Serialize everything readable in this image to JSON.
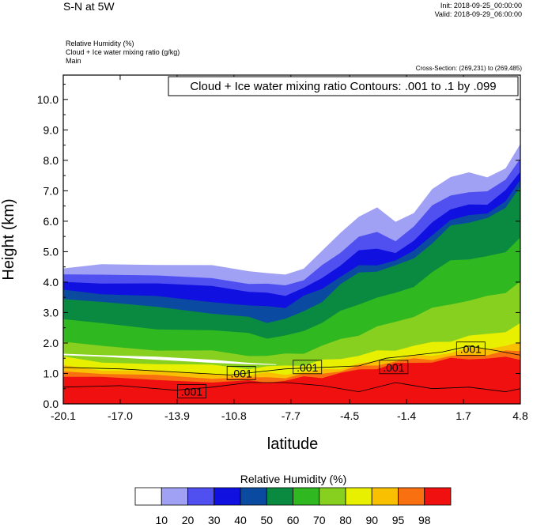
{
  "header": {
    "title": "S-N at 5W",
    "init": "Init: 2018-09-25_00:00:00",
    "valid": "Valid: 2018-09-29_06:00:00",
    "var1": "Relative Humidity   (%)",
    "var2": "Cloud + Ice water mixing ratio   (g/kg)",
    "var3": "Main",
    "cross_section": "Cross-Section: (269,231) to (269,485)"
  },
  "colors": {
    "levels": [
      "#ffffff",
      "#a0a0f5",
      "#5050f0",
      "#1010e0",
      "#0a4aa0",
      "#0a8a40",
      "#30b820",
      "#88d020",
      "#e8f000",
      "#f8c000",
      "#f87010",
      "#f01010"
    ]
  },
  "chart_data": {
    "type": "heatmap",
    "title": "Cloud + Ice water mixing ratio Contours: .001 to .1 by .099",
    "xlabel": "latitude",
    "ylabel": "Height (km)",
    "xlim": [
      -20.1,
      4.8
    ],
    "ylim": [
      0.0,
      10.8
    ],
    "x_ticks": [
      "-20.1",
      "-17.0",
      "-13.9",
      "-10.8",
      "-7.7",
      "-4.5",
      "-1.4",
      "1.7",
      "4.8"
    ],
    "y_ticks": [
      "0.0",
      "1.0",
      "2.0",
      "3.0",
      "4.0",
      "5.0",
      "6.0",
      "7.0",
      "8.0",
      "9.0",
      "10.0"
    ],
    "colorbar_title": "Relative Humidity  (%)",
    "colorbar_labels": [
      "10",
      "20",
      "30",
      "40",
      "50",
      "60",
      "70",
      "80",
      "90",
      "95",
      "98"
    ],
    "contour_labels": [
      {
        "text": ".001",
        "lat": -13.1,
        "height": 0.4
      },
      {
        "text": ".001",
        "lat": -10.4,
        "height": 1.0
      },
      {
        "text": ".001",
        "lat": -6.8,
        "height": 1.2
      },
      {
        "text": ".001",
        "lat": -2.1,
        "height": 1.2
      },
      {
        "text": ".001",
        "lat": 2.1,
        "height": 1.8
      }
    ],
    "rh_layers": [
      {
        "level": 1,
        "lat": [
          -20.1,
          -18,
          -15,
          -12,
          -10,
          -9,
          -8,
          -7,
          -6,
          -5,
          -4,
          -3,
          -2,
          -1,
          0,
          1,
          2,
          3,
          4,
          4.8
        ],
        "top": [
          4.4,
          4.6,
          4.6,
          4.5,
          4.4,
          4.3,
          4.2,
          4.5,
          5.0,
          5.6,
          6.2,
          6.4,
          6.0,
          6.3,
          7.0,
          7.5,
          7.6,
          7.4,
          7.8,
          8.5
        ]
      },
      {
        "level": 2,
        "lat": [
          -20.1,
          -18,
          -15,
          -12,
          -10,
          -9,
          -8,
          -7,
          -6,
          -5,
          -4,
          -3,
          -2,
          -1,
          0,
          1,
          2,
          3,
          4,
          4.8
        ],
        "top": [
          4.2,
          4.3,
          4.2,
          4.1,
          4.0,
          3.9,
          3.9,
          4.1,
          4.5,
          5.0,
          5.5,
          5.6,
          5.4,
          5.8,
          6.5,
          6.9,
          6.9,
          7.0,
          7.4,
          8.0
        ]
      },
      {
        "level": 3,
        "lat": [
          -20.1,
          -18,
          -15,
          -12,
          -10,
          -9,
          -8,
          -7,
          -6,
          -5,
          -4,
          -3,
          -2,
          -1,
          0,
          1,
          2,
          3,
          4,
          4.8
        ],
        "top": [
          4.0,
          4.0,
          3.9,
          3.9,
          3.7,
          3.6,
          3.6,
          3.8,
          4.1,
          4.6,
          5.0,
          5.1,
          5.0,
          5.3,
          6.0,
          6.4,
          6.5,
          6.6,
          7.0,
          7.6
        ]
      },
      {
        "level": 4,
        "lat": [
          -20.1,
          -18,
          -15,
          -12,
          -10,
          -9,
          -8,
          -7,
          -6,
          -5,
          -4,
          -3,
          -2,
          -1,
          0,
          1,
          2,
          3,
          4,
          4.8
        ],
        "top": [
          3.8,
          3.6,
          3.5,
          3.4,
          3.2,
          3.2,
          3.2,
          3.5,
          3.8,
          4.2,
          4.5,
          4.6,
          4.7,
          5.0,
          5.6,
          6.0,
          6.2,
          6.3,
          6.6,
          7.4
        ]
      },
      {
        "level": 5,
        "lat": [
          -20.1,
          -18,
          -15,
          -12,
          -10,
          -9,
          -8,
          -7,
          -6,
          -5,
          -4,
          -3,
          -2,
          -1,
          0,
          1,
          2,
          3,
          4,
          4.8
        ],
        "top": [
          3.5,
          3.3,
          3.2,
          3.0,
          2.8,
          2.7,
          2.8,
          3.0,
          3.4,
          3.9,
          4.3,
          4.4,
          4.5,
          4.8,
          5.3,
          5.8,
          6.0,
          6.1,
          6.4,
          7.2
        ]
      },
      {
        "level": 6,
        "lat": [
          -20.1,
          -18,
          -15,
          -12,
          -10,
          -9,
          -8,
          -7,
          -6,
          -5,
          -4,
          -3,
          -2,
          -1,
          0,
          1,
          2,
          3,
          4,
          4.8
        ],
        "top": [
          2.8,
          2.6,
          2.5,
          2.4,
          2.3,
          2.2,
          2.2,
          2.4,
          2.7,
          3.0,
          3.3,
          3.5,
          3.6,
          3.9,
          4.3,
          4.7,
          4.8,
          4.8,
          5.0,
          5.5
        ]
      },
      {
        "level": 7,
        "lat": [
          -20.1,
          -18,
          -15,
          -12,
          -10,
          -9,
          -8,
          -7,
          -6,
          -5,
          -4,
          -3,
          -2,
          -1,
          0,
          1,
          2,
          3,
          4,
          4.8
        ],
        "top": [
          2.0,
          1.9,
          1.8,
          1.7,
          1.6,
          1.6,
          1.6,
          1.7,
          1.9,
          2.1,
          2.3,
          2.5,
          2.7,
          2.9,
          3.1,
          3.3,
          3.4,
          3.5,
          3.7,
          4.0
        ]
      },
      {
        "level": 8,
        "lat": [
          -20.1,
          -18,
          -15,
          -12,
          -10,
          -9,
          -8,
          -7,
          -6,
          -5,
          -4,
          -3,
          -2,
          -1,
          0,
          1,
          2,
          3,
          4,
          4.8
        ],
        "top": [
          1.5,
          1.4,
          1.3,
          1.25,
          1.2,
          1.2,
          1.25,
          1.3,
          1.4,
          1.5,
          1.6,
          1.7,
          1.8,
          1.9,
          2.0,
          2.1,
          2.2,
          2.3,
          2.4,
          2.6
        ]
      },
      {
        "level": 9,
        "lat": [
          -20.1,
          -18,
          -15,
          -12,
          -10,
          -9,
          -8,
          -7,
          -6,
          -5,
          -4,
          -3,
          -2,
          -1,
          0,
          1,
          2,
          3,
          4,
          4.8
        ],
        "top": [
          1.25,
          1.15,
          1.05,
          1.0,
          0.98,
          0.98,
          1.0,
          1.05,
          1.1,
          1.2,
          1.3,
          1.4,
          1.5,
          1.55,
          1.6,
          1.7,
          1.8,
          1.85,
          1.9,
          2.0
        ]
      },
      {
        "level": 10,
        "lat": [
          -20.1,
          -18,
          -15,
          -12,
          -10,
          -9,
          -8,
          -7,
          -6,
          -5,
          -4,
          -3,
          -2,
          -1,
          0,
          1,
          2,
          3,
          4,
          4.8
        ],
        "top": [
          1.1,
          1.0,
          0.9,
          0.88,
          0.85,
          0.85,
          0.9,
          0.95,
          1.0,
          1.1,
          1.2,
          1.3,
          1.4,
          1.45,
          1.5,
          1.55,
          1.6,
          1.65,
          1.7,
          1.75
        ]
      },
      {
        "level": 11,
        "lat": [
          -20.1,
          -18,
          -15,
          -12,
          -10,
          -9,
          -8,
          -7,
          -6,
          -5,
          -4,
          -3,
          -2,
          -1,
          0,
          1,
          2,
          3,
          4,
          4.8
        ],
        "top": [
          0.95,
          0.85,
          0.78,
          0.75,
          0.72,
          0.72,
          0.78,
          0.85,
          0.9,
          1.0,
          1.1,
          1.2,
          1.3,
          1.35,
          1.4,
          1.45,
          1.5,
          1.5,
          1.5,
          1.5
        ]
      }
    ],
    "white_gap_lat": [
      -20.1,
      -18,
      -15,
      -12,
      -10,
      -8.5
    ],
    "white_gap_top": [
      1.65,
      1.6,
      1.55,
      1.45,
      1.35,
      1.3
    ],
    "white_gap_bot": [
      1.6,
      1.55,
      1.45,
      1.35,
      1.3,
      1.28
    ]
  }
}
